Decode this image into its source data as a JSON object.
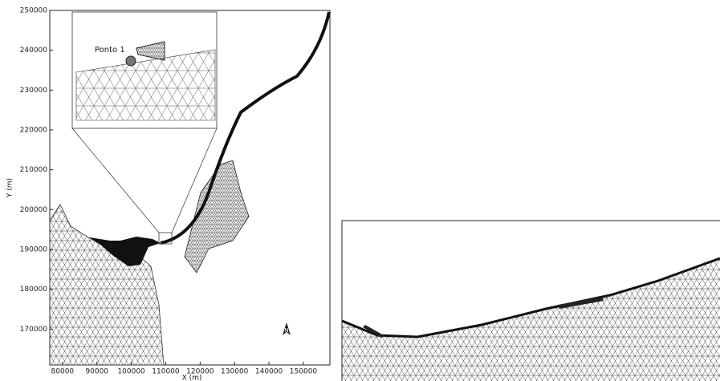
{
  "map": {
    "xlabel": "X (m)",
    "ylabel": "Y (m)",
    "xlim": [
      76300,
      157700
    ],
    "ylim": [
      161000,
      250000
    ],
    "xticks": [
      80000,
      90000,
      100000,
      110000,
      120000,
      130000,
      140000,
      150000
    ],
    "yticks": [
      170000,
      180000,
      190000,
      200000,
      210000,
      220000,
      230000,
      240000,
      250000
    ]
  },
  "inset": {
    "point_label": "Ponto 1"
  },
  "north_label": "N"
}
